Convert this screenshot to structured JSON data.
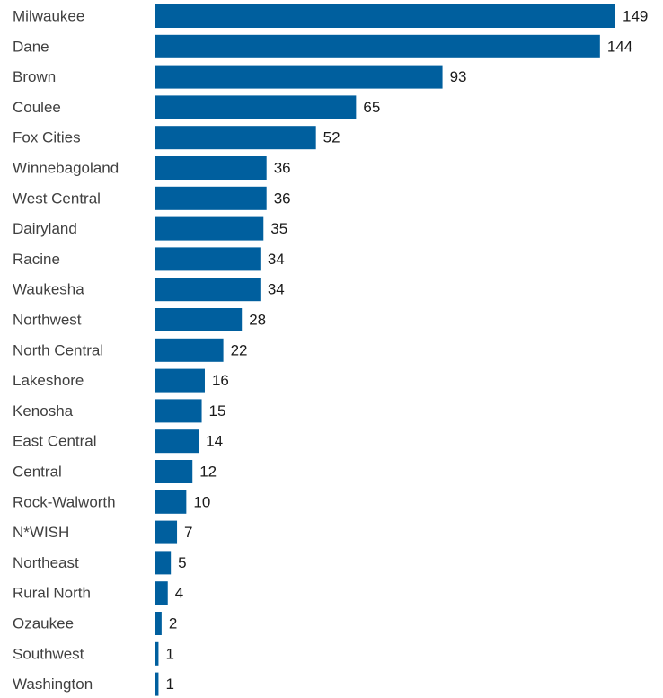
{
  "chart_data": {
    "type": "bar",
    "orientation": "horizontal",
    "categories": [
      "Milwaukee",
      "Dane",
      "Brown",
      "Coulee",
      "Fox Cities",
      "Winnebagoland",
      "West Central",
      "Dairyland",
      "Racine",
      "Waukesha",
      "Northwest",
      "North Central",
      "Lakeshore",
      "Kenosha",
      "East Central",
      "Central",
      "Rock-Walworth",
      "N*WISH",
      "Northeast",
      "Rural North",
      "Ozaukee",
      "Southwest",
      "Washington"
    ],
    "values": [
      149,
      144,
      93,
      65,
      52,
      36,
      36,
      35,
      34,
      34,
      28,
      22,
      16,
      15,
      14,
      12,
      10,
      7,
      5,
      4,
      2,
      1,
      1
    ],
    "title": "",
    "xlabel": "",
    "ylabel": "",
    "xlim": [
      0,
      149
    ],
    "grid": false,
    "legend": "none",
    "data_labels": true,
    "colors": {
      "bar": "#005f9e",
      "category_text": "#404040",
      "value_text": "#1a1a1a"
    }
  }
}
